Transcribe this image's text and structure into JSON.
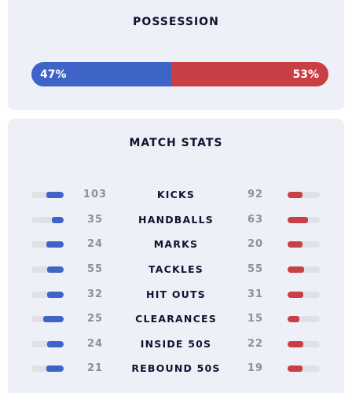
{
  "possession": {
    "title": "POSSESSION",
    "home_pct": 47,
    "away_pct": 53,
    "home_label": "47%",
    "away_label": "53%",
    "home_color": "#3f64c8",
    "away_color": "#c93f46"
  },
  "match_stats": {
    "title": "MATCH STATS",
    "rows": [
      {
        "label": "KICKS",
        "home": "103",
        "away": "92"
      },
      {
        "label": "HANDBALLS",
        "home": "35",
        "away": "63"
      },
      {
        "label": "MARKS",
        "home": "24",
        "away": "20"
      },
      {
        "label": "TACKLES",
        "home": "55",
        "away": "55"
      },
      {
        "label": "HIT OUTS",
        "home": "32",
        "away": "31"
      },
      {
        "label": "CLEARANCES",
        "home": "25",
        "away": "15"
      },
      {
        "label": "INSIDE 50S",
        "home": "24",
        "away": "22"
      },
      {
        "label": "REBOUND 50S",
        "home": "21",
        "away": "19"
      }
    ]
  }
}
